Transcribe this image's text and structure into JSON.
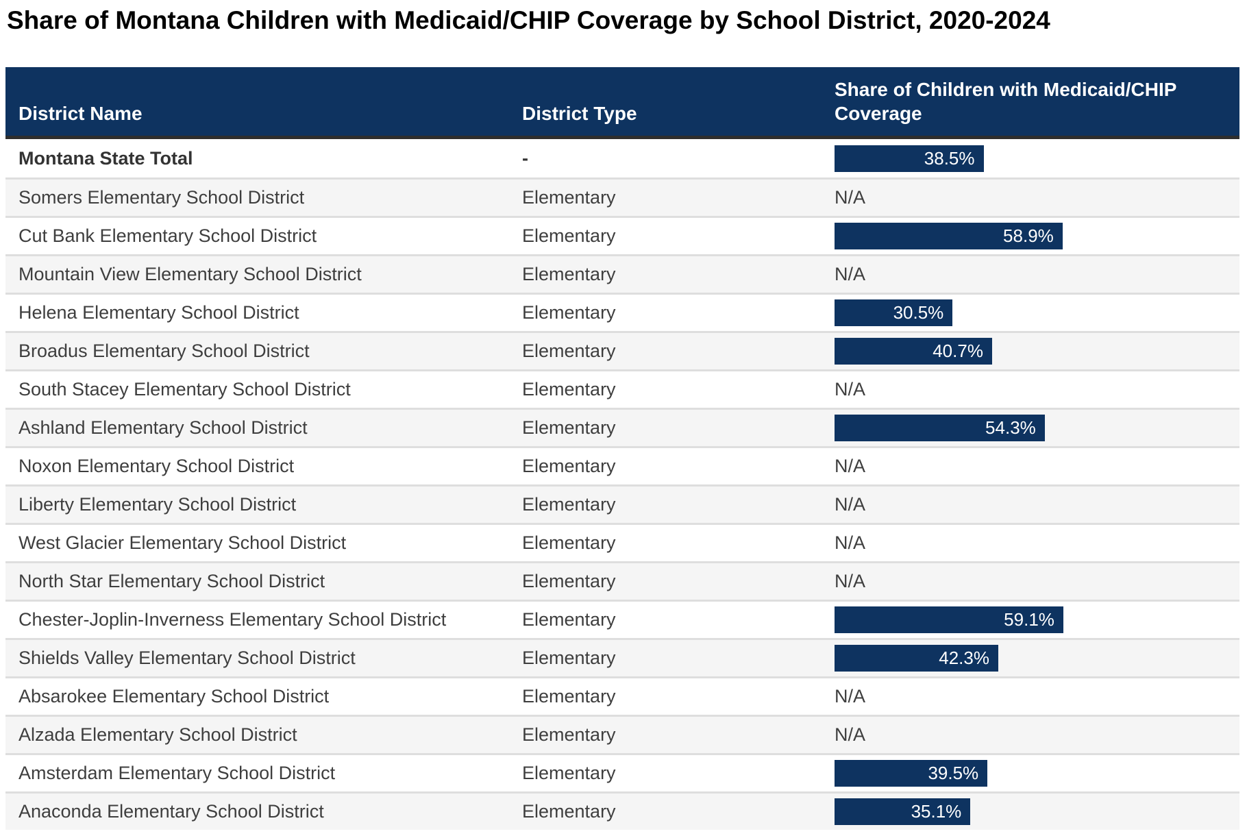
{
  "title": "Share of Montana Children with Medicaid/CHIP Coverage by School District, 2020-2024",
  "header": {
    "district_name": "District Name",
    "district_type": "District Type",
    "share_line1": "Share of Children with Medicaid/CHIP",
    "share_line2": "Coverage",
    "share_full": "Share of Children with Medicaid/CHIP Coverage"
  },
  "na_label": "N/A",
  "colors": {
    "header_bg": "#0e3360",
    "bar_fill": "#0e3360",
    "bar_label": "#ffffff",
    "row_alt_bg": "#f5f5f5",
    "row_separator": "#dedede",
    "header_border": "#2e2e2e",
    "body_text": "#3e3e3e",
    "title_text": "#000000"
  },
  "rows": [
    {
      "name": "Montana State Total",
      "type": "-",
      "value": 38.5,
      "label": "38.5%",
      "emphasis": true
    },
    {
      "name": "Somers Elementary School District",
      "type": "Elementary",
      "value": null,
      "label": "N/A",
      "emphasis": false
    },
    {
      "name": "Cut Bank Elementary School District",
      "type": "Elementary",
      "value": 58.9,
      "label": "58.9%",
      "emphasis": false
    },
    {
      "name": "Mountain View Elementary School District",
      "type": "Elementary",
      "value": null,
      "label": "N/A",
      "emphasis": false
    },
    {
      "name": "Helena Elementary School District",
      "type": "Elementary",
      "value": 30.5,
      "label": "30.5%",
      "emphasis": false
    },
    {
      "name": "Broadus Elementary School District",
      "type": "Elementary",
      "value": 40.7,
      "label": "40.7%",
      "emphasis": false
    },
    {
      "name": "South Stacey Elementary School District",
      "type": "Elementary",
      "value": null,
      "label": "N/A",
      "emphasis": false
    },
    {
      "name": "Ashland Elementary School District",
      "type": "Elementary",
      "value": 54.3,
      "label": "54.3%",
      "emphasis": false
    },
    {
      "name": "Noxon Elementary School District",
      "type": "Elementary",
      "value": null,
      "label": "N/A",
      "emphasis": false
    },
    {
      "name": "Liberty Elementary School District",
      "type": "Elementary",
      "value": null,
      "label": "N/A",
      "emphasis": false
    },
    {
      "name": "West Glacier Elementary School District",
      "type": "Elementary",
      "value": null,
      "label": "N/A",
      "emphasis": false
    },
    {
      "name": "North Star Elementary School District",
      "type": "Elementary",
      "value": null,
      "label": "N/A",
      "emphasis": false
    },
    {
      "name": "Chester-Joplin-Inverness Elementary School District",
      "type": "Elementary",
      "value": 59.1,
      "label": "59.1%",
      "emphasis": false
    },
    {
      "name": "Shields Valley Elementary School District",
      "type": "Elementary",
      "value": 42.3,
      "label": "42.3%",
      "emphasis": false
    },
    {
      "name": "Absarokee Elementary School District",
      "type": "Elementary",
      "value": null,
      "label": "N/A",
      "emphasis": false
    },
    {
      "name": "Alzada Elementary School District",
      "type": "Elementary",
      "value": null,
      "label": "N/A",
      "emphasis": false
    },
    {
      "name": "Amsterdam Elementary School District",
      "type": "Elementary",
      "value": 39.5,
      "label": "39.5%",
      "emphasis": false
    },
    {
      "name": "Anaconda Elementary School District",
      "type": "Elementary",
      "value": 35.1,
      "label": "35.1%",
      "emphasis": false
    }
  ],
  "chart_data": {
    "type": "table",
    "title": "Share of Montana Children with Medicaid/CHIP Coverage by School District, 2020-2024",
    "columns": [
      "District Name",
      "District Type",
      "Share of Children with Medicaid/CHIP Coverage"
    ],
    "value_unit": "%",
    "bar_axis_max": 100,
    "na_label": "N/A",
    "rows": [
      [
        "Montana State Total",
        "-",
        38.5
      ],
      [
        "Somers Elementary School District",
        "Elementary",
        null
      ],
      [
        "Cut Bank Elementary School District",
        "Elementary",
        58.9
      ],
      [
        "Mountain View Elementary School District",
        "Elementary",
        null
      ],
      [
        "Helena Elementary School District",
        "Elementary",
        30.5
      ],
      [
        "Broadus Elementary School District",
        "Elementary",
        40.7
      ],
      [
        "South Stacey Elementary School District",
        "Elementary",
        null
      ],
      [
        "Ashland Elementary School District",
        "Elementary",
        54.3
      ],
      [
        "Noxon Elementary School District",
        "Elementary",
        null
      ],
      [
        "Liberty Elementary School District",
        "Elementary",
        null
      ],
      [
        "West Glacier Elementary School District",
        "Elementary",
        null
      ],
      [
        "North Star Elementary School District",
        "Elementary",
        null
      ],
      [
        "Chester-Joplin-Inverness Elementary School District",
        "Elementary",
        59.1
      ],
      [
        "Shields Valley Elementary School District",
        "Elementary",
        42.3
      ],
      [
        "Absarokee Elementary School District",
        "Elementary",
        null
      ],
      [
        "Alzada Elementary School District",
        "Elementary",
        null
      ],
      [
        "Amsterdam Elementary School District",
        "Elementary",
        39.5
      ],
      [
        "Anaconda Elementary School District",
        "Elementary",
        35.1
      ]
    ]
  }
}
